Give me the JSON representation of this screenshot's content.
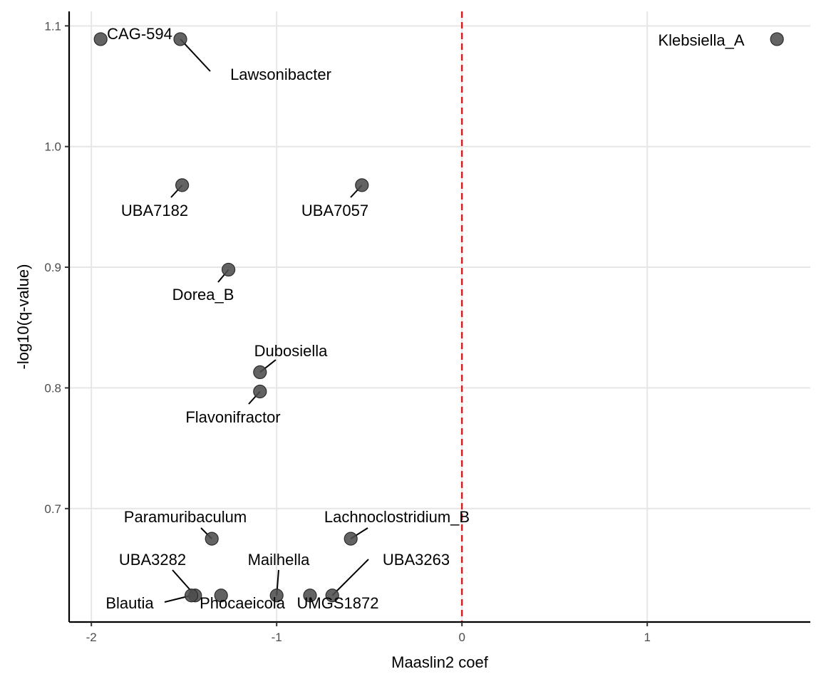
{
  "chart_data": {
    "type": "scatter",
    "title": "",
    "xlabel": "Maaslin2 coef",
    "ylabel": "-log10(q-value)",
    "xlim": [
      -2.12,
      1.88
    ],
    "ylim": [
      0.606,
      1.112
    ],
    "x_ticks": [
      -2,
      -1,
      0,
      1
    ],
    "x_tick_labels": [
      "-2",
      "-1",
      "0",
      "1"
    ],
    "y_ticks": [
      0.7,
      0.8,
      0.9,
      1.0,
      1.1
    ],
    "y_tick_labels": [
      "0.7",
      "0.8",
      "0.9",
      "1.0",
      "1.1"
    ],
    "grid": true,
    "reference_line": {
      "axis": "x",
      "value": 0,
      "color": "#ff0000",
      "style": "dashed"
    },
    "point_color": "#4d4d4d",
    "points": [
      {
        "x": -1.95,
        "y": 1.089,
        "label": "CAG-594"
      },
      {
        "x": -1.52,
        "y": 1.089,
        "label": "Lawsonibacter"
      },
      {
        "x": 1.7,
        "y": 1.089,
        "label": "Klebsiella_A"
      },
      {
        "x": -1.51,
        "y": 0.968,
        "label": "UBA7182"
      },
      {
        "x": -0.54,
        "y": 0.968,
        "label": "UBA7057"
      },
      {
        "x": -1.26,
        "y": 0.898,
        "label": "Dorea_B"
      },
      {
        "x": -1.09,
        "y": 0.813,
        "label": "Dubosiella"
      },
      {
        "x": -1.09,
        "y": 0.797,
        "label": "Flavonifractor"
      },
      {
        "x": -1.35,
        "y": 0.675,
        "label": "Paramuribaculum"
      },
      {
        "x": -0.6,
        "y": 0.675,
        "label": "Lachnoclostridium_B"
      },
      {
        "x": -1.44,
        "y": 0.628,
        "label": "UBA3282"
      },
      {
        "x": -1.46,
        "y": 0.628,
        "label": "Blautia"
      },
      {
        "x": -1.3,
        "y": 0.628,
        "label": "Phocaeicola"
      },
      {
        "x": -1.0,
        "y": 0.628,
        "label": "Mailhella"
      },
      {
        "x": -0.82,
        "y": 0.628,
        "label": "UMGS1872"
      },
      {
        "x": -0.7,
        "y": 0.628,
        "label": "UBA3263"
      }
    ]
  }
}
